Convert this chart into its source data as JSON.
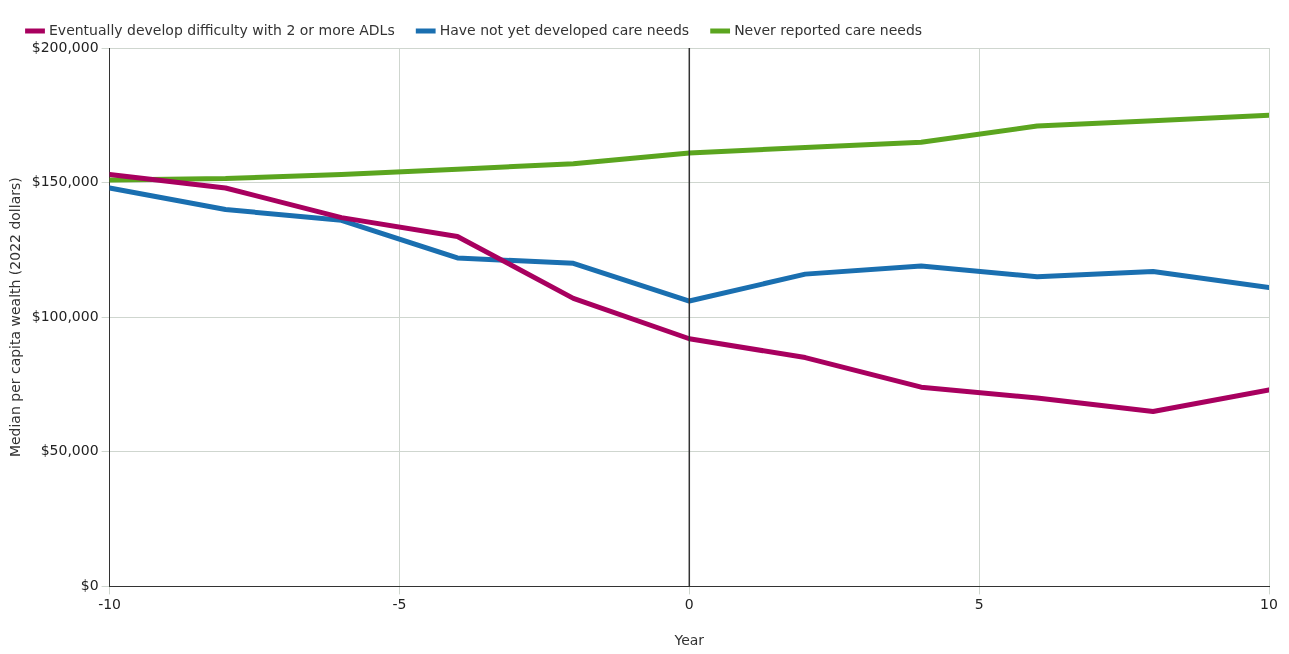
{
  "chart_data": {
    "type": "line",
    "xlabel": "Year",
    "ylabel": "Median per capita wealth (2022 dollars)",
    "x": [
      -10,
      -8,
      -6,
      -4,
      -2,
      0,
      2,
      4,
      6,
      8,
      10
    ],
    "series": [
      {
        "name": "Eventually develop difficulty with 2 or more ADLs",
        "color": "#a8005f",
        "values": [
          153000,
          148000,
          137000,
          130000,
          107000,
          92000,
          85000,
          74000,
          70000,
          65000,
          73000
        ]
      },
      {
        "name": "Have not yet developed care needs",
        "color": "#1a6fb0",
        "values": [
          148000,
          140000,
          136000,
          122000,
          120000,
          106000,
          116000,
          119000,
          115000,
          117000,
          111000
        ]
      },
      {
        "name": "Never reported care needs",
        "color": "#5ba51f",
        "values": [
          151000,
          151500,
          153000,
          155000,
          157000,
          161000,
          163000,
          165000,
          171000,
          173000,
          175000
        ]
      }
    ],
    "xlim": [
      -10,
      10
    ],
    "xticks": [
      -10,
      -5,
      0,
      5,
      10
    ],
    "ylim": [
      0,
      200000
    ],
    "yticks": [
      {
        "value": 0,
        "label": "$0"
      },
      {
        "value": 50000,
        "label": "$50,000"
      },
      {
        "value": 100000,
        "label": "$100,000"
      },
      {
        "value": 150000,
        "label": "$150,000"
      },
      {
        "value": 200000,
        "label": "$200,000"
      }
    ],
    "ref_lines": [
      {
        "axis": "x",
        "value": 0,
        "color": "#333333"
      }
    ],
    "grid": true,
    "legend": "top left",
    "marker": "none",
    "line_style": "solid"
  }
}
